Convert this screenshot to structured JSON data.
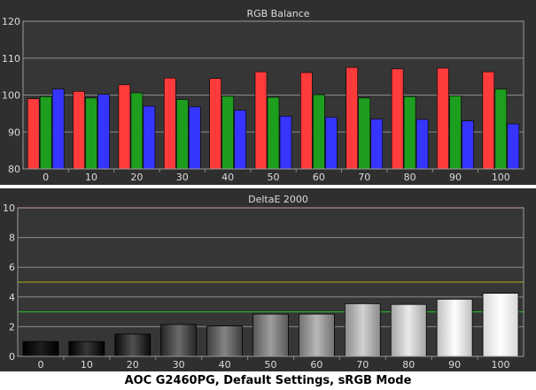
{
  "caption": "AOC G2460PG, Default Settings, sRGB Mode",
  "colors": {
    "panel_bg": "#2f2f2f",
    "plot_bg": "#363636",
    "grid": "#8a8a8a",
    "text": "#dcdcdc",
    "red": "#ff3b3b",
    "green": "#1e9e1e",
    "blue": "#3535ff",
    "threshold_red": "#ff4040",
    "threshold_yellow": "#9a9a22",
    "threshold_green": "#22aa22"
  },
  "chart_data": [
    {
      "type": "bar",
      "title": "RGB Balance",
      "categories": [
        "0",
        "10",
        "20",
        "30",
        "40",
        "50",
        "60",
        "70",
        "80",
        "90",
        "100"
      ],
      "series": [
        {
          "color": "red",
          "values": [
            99,
            101,
            102.8,
            104.6,
            104.5,
            106.3,
            106.1,
            107.5,
            107.1,
            107.3,
            106.3
          ]
        },
        {
          "color": "green",
          "values": [
            99.6,
            99.2,
            100.6,
            98.8,
            99.7,
            99.4,
            100.1,
            99.2,
            99.6,
            99.8,
            101.6
          ]
        },
        {
          "color": "blue",
          "values": [
            101.6,
            100.2,
            97,
            96.8,
            95.9,
            94.3,
            94,
            93.5,
            93.4,
            93,
            92.2
          ]
        }
      ],
      "ylim": [
        80,
        120
      ],
      "yticks": [
        "80",
        "90",
        "100",
        "110",
        "120"
      ],
      "grid": true
    },
    {
      "type": "bar",
      "title": "DeltaE 2000",
      "categories": [
        "0",
        "10",
        "20",
        "30",
        "40",
        "50",
        "60",
        "70",
        "80",
        "90",
        "100"
      ],
      "values": [
        1.0,
        1.0,
        1.5,
        2.15,
        2.05,
        2.85,
        2.85,
        3.55,
        3.5,
        3.85,
        4.25
      ],
      "ylim": [
        0,
        10
      ],
      "yticks": [
        "0",
        "2",
        "4",
        "6",
        "8",
        "10"
      ],
      "thresholds": [
        {
          "value": 10,
          "color": "red"
        },
        {
          "value": 5,
          "color": "yellow"
        },
        {
          "value": 3,
          "color": "green"
        }
      ],
      "grid": true
    }
  ]
}
